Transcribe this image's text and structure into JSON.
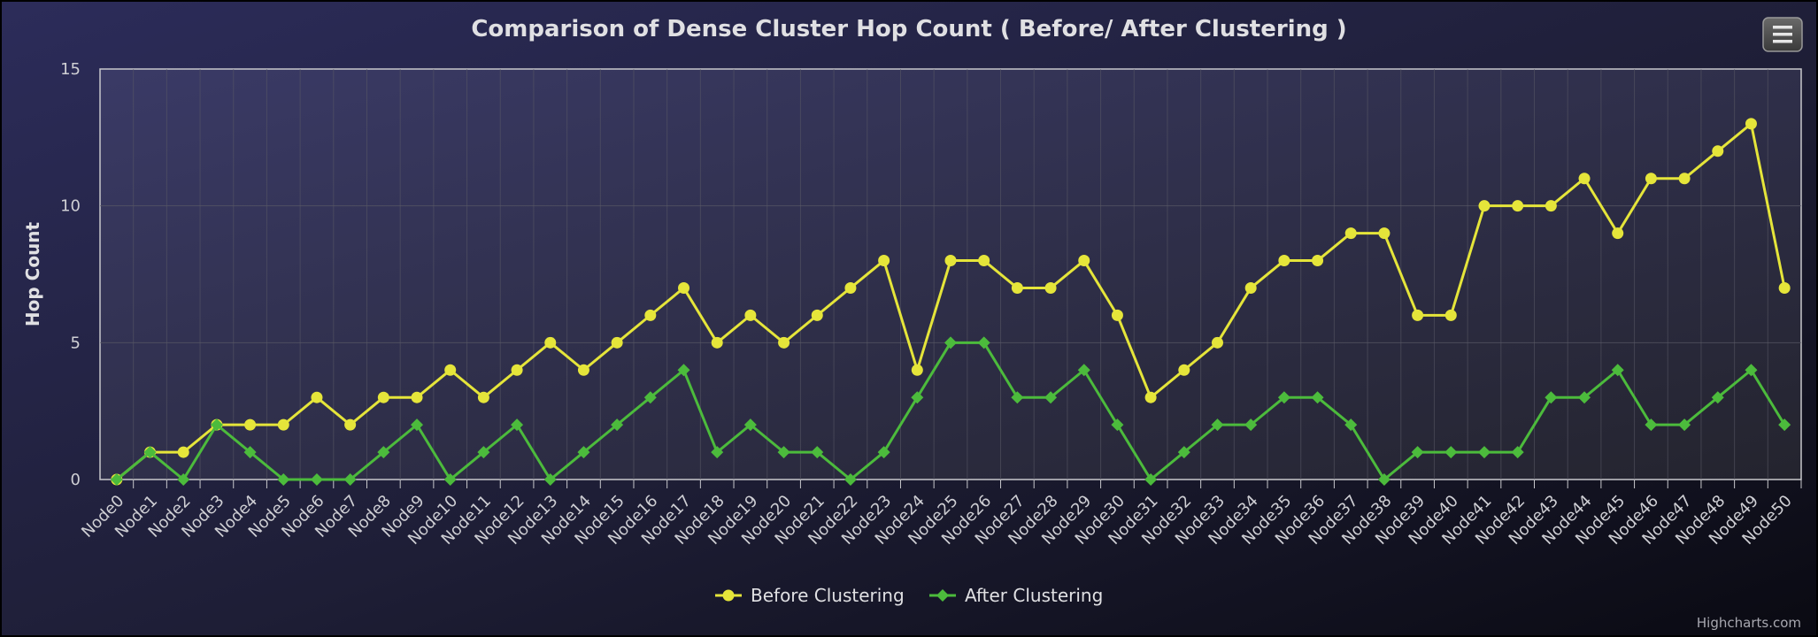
{
  "chart_data": {
    "type": "line",
    "title": "Comparison of Dense Cluster Hop Count ( Before/ After Clustering )",
    "ylabel": "Hop Count",
    "xlabel": "",
    "ylim": [
      0,
      15
    ],
    "yticks": [
      0,
      5,
      10,
      15
    ],
    "grid": true,
    "legend_position": "bottom-center",
    "categories": [
      "Node0",
      "Node1",
      "Node2",
      "Node3",
      "Node4",
      "Node5",
      "Node6",
      "Node7",
      "Node8",
      "Node9",
      "Node10",
      "Node11",
      "Node12",
      "Node13",
      "Node14",
      "Node15",
      "Node16",
      "Node17",
      "Node18",
      "Node19",
      "Node20",
      "Node21",
      "Node22",
      "Node23",
      "Node24",
      "Node25",
      "Node26",
      "Node27",
      "Node28",
      "Node29",
      "Node30",
      "Node31",
      "Node32",
      "Node33",
      "Node34",
      "Node35",
      "Node36",
      "Node37",
      "Node38",
      "Node39",
      "Node40",
      "Node41",
      "Node42",
      "Node43",
      "Node44",
      "Node45",
      "Node46",
      "Node47",
      "Node48",
      "Node49",
      "Node50"
    ],
    "series": [
      {
        "name": "Before Clustering",
        "color": "#e5e53a",
        "marker": "circle",
        "values": [
          0,
          1,
          1,
          2,
          2,
          2,
          3,
          2,
          3,
          3,
          4,
          3,
          4,
          5,
          4,
          5,
          6,
          7,
          5,
          6,
          5,
          6,
          7,
          8,
          4,
          8,
          8,
          7,
          7,
          8,
          6,
          3,
          4,
          5,
          7,
          8,
          8,
          9,
          9,
          6,
          6,
          10,
          10,
          10,
          11,
          9,
          11,
          11,
          12,
          13,
          7
        ]
      },
      {
        "name": "After Clustering",
        "color": "#4cbb3c",
        "marker": "diamond",
        "values": [
          0,
          1,
          0,
          2,
          1,
          0,
          0,
          0,
          1,
          2,
          0,
          1,
          2,
          0,
          1,
          2,
          3,
          4,
          1,
          2,
          1,
          1,
          0,
          1,
          3,
          5,
          5,
          3,
          3,
          4,
          2,
          0,
          1,
          2,
          2,
          3,
          3,
          2,
          0,
          1,
          1,
          1,
          1,
          3,
          3,
          4,
          2,
          2,
          3,
          4,
          2
        ]
      }
    ]
  },
  "menu": {
    "icon": "hamburger-menu-icon"
  },
  "credits": "Highcharts.com"
}
